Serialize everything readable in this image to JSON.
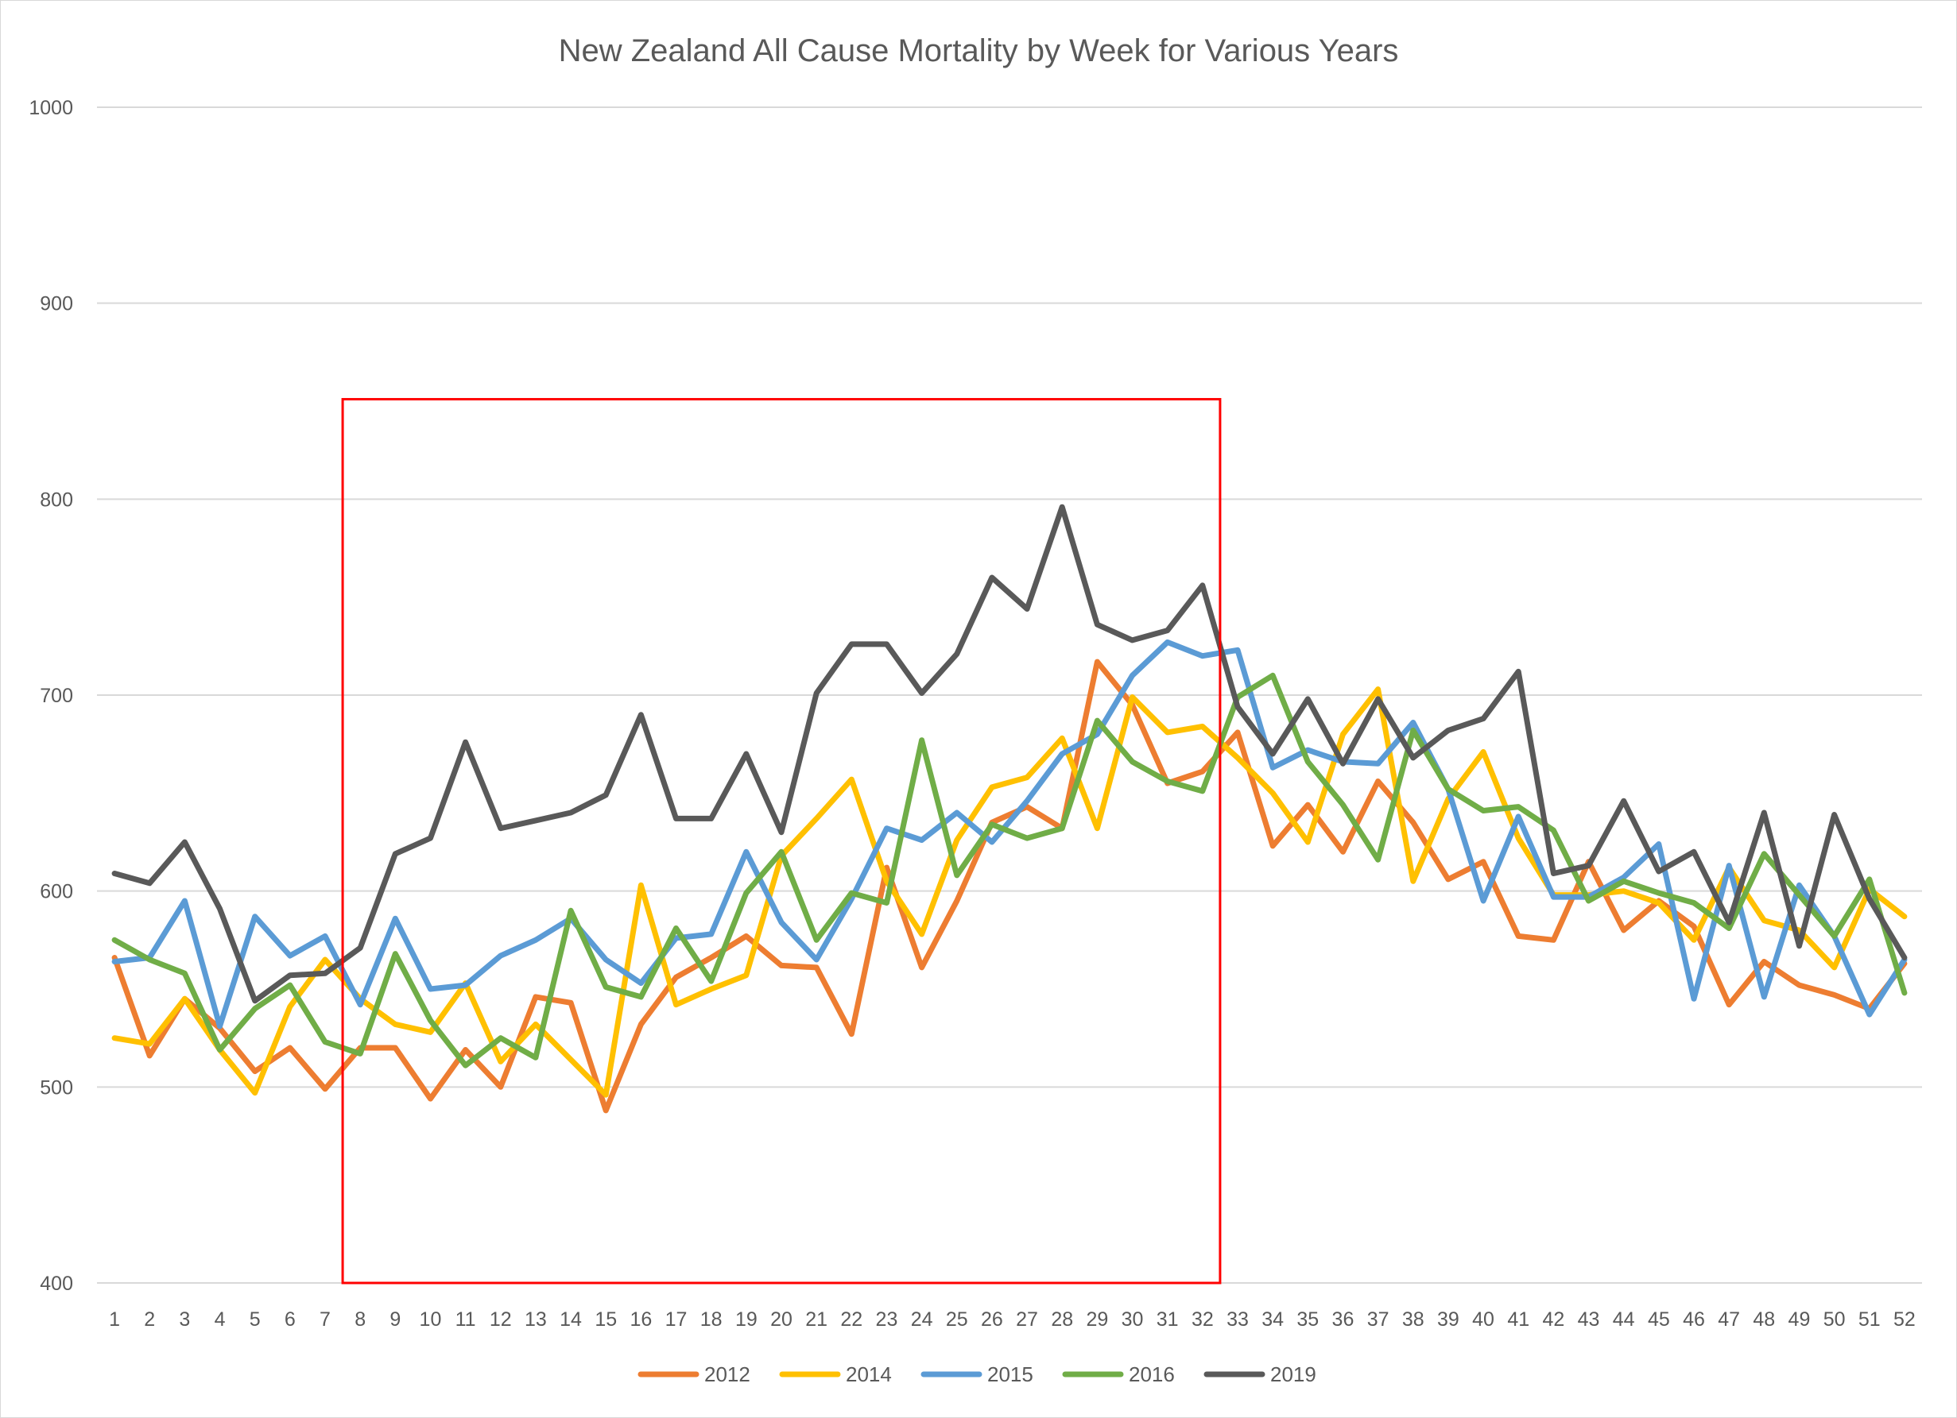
{
  "chart_data": {
    "type": "line",
    "title": "New Zealand All Cause Mortality by Week for Various Years",
    "xlabel": "",
    "ylabel": "",
    "ylim": [
      400,
      1000
    ],
    "y_ticks": [
      "400",
      "500",
      "600",
      "700",
      "800",
      "900",
      "1000"
    ],
    "categories": [
      "1",
      "2",
      "3",
      "4",
      "5",
      "6",
      "7",
      "8",
      "9",
      "10",
      "11",
      "12",
      "13",
      "14",
      "15",
      "16",
      "17",
      "18",
      "19",
      "20",
      "21",
      "22",
      "23",
      "24",
      "25",
      "26",
      "27",
      "28",
      "29",
      "30",
      "31",
      "32",
      "33",
      "34",
      "35",
      "36",
      "37",
      "38",
      "39",
      "40",
      "41",
      "42",
      "43",
      "44",
      "45",
      "46",
      "47",
      "48",
      "49",
      "50",
      "51",
      "52"
    ],
    "grid": "horizontal",
    "legend_position": "bottom",
    "highlight_box": {
      "x_start": "7.5",
      "x_end": "32.5",
      "y_start": 400,
      "y_end": 851,
      "color": "#FF0000"
    },
    "series": [
      {
        "name": "2012",
        "color": "#ED7D31",
        "values": [
          566,
          516,
          545,
          530,
          508,
          520,
          499,
          520,
          520,
          494,
          519,
          500,
          546,
          543,
          488,
          532,
          556,
          566,
          577,
          562,
          561,
          527,
          612,
          561,
          595,
          635,
          643,
          632,
          717,
          695,
          655,
          661,
          681,
          623,
          644,
          620,
          656,
          635,
          606,
          615,
          577,
          575,
          615,
          580,
          595,
          582,
          542,
          564,
          552,
          547,
          540,
          563
        ]
      },
      {
        "name": "2014",
        "color": "#FFC000",
        "values": [
          525,
          522,
          545,
          519,
          497,
          541,
          565,
          545,
          532,
          528,
          553,
          513,
          532,
          514,
          496,
          603,
          542,
          550,
          557,
          618,
          637,
          657,
          605,
          578,
          626,
          653,
          658,
          678,
          632,
          699,
          681,
          684,
          668,
          650,
          625,
          680,
          703,
          605,
          647,
          671,
          627,
          598,
          598,
          600,
          594,
          575,
          612,
          585,
          580,
          561,
          601,
          587
        ]
      },
      {
        "name": "2015",
        "color": "#5B9BD5",
        "values": [
          564,
          566,
          595,
          531,
          587,
          567,
          577,
          542,
          586,
          550,
          552,
          567,
          575,
          586,
          565,
          553,
          576,
          578,
          620,
          584,
          565,
          596,
          632,
          626,
          640,
          625,
          646,
          670,
          680,
          710,
          727,
          720,
          723,
          663,
          672,
          666,
          665,
          686,
          652,
          595,
          638,
          597,
          597,
          607,
          624,
          545,
          613,
          546,
          603,
          577,
          537,
          565
        ]
      },
      {
        "name": "2016",
        "color": "#70AD47",
        "values": [
          575,
          565,
          558,
          519,
          540,
          552,
          523,
          517,
          568,
          534,
          511,
          525,
          515,
          590,
          551,
          546,
          581,
          554,
          599,
          620,
          575,
          599,
          594,
          677,
          608,
          634,
          627,
          632,
          687,
          666,
          656,
          651,
          699,
          710,
          666,
          644,
          616,
          682,
          652,
          641,
          643,
          631,
          595,
          605,
          599,
          594,
          581,
          619,
          598,
          577,
          606,
          548
        ]
      },
      {
        "name": "2019",
        "color": "#595959",
        "values": [
          609,
          604,
          625,
          591,
          544,
          557,
          558,
          571,
          619,
          627,
          676,
          632,
          636,
          640,
          649,
          690,
          637,
          637,
          670,
          630,
          701,
          726,
          726,
          701,
          721,
          760,
          744,
          796,
          736,
          728,
          733,
          756,
          694,
          670,
          698,
          665,
          698,
          668,
          682,
          688,
          712,
          609,
          613,
          646,
          610,
          620,
          584,
          640,
          572,
          639,
          596,
          566
        ]
      }
    ]
  }
}
